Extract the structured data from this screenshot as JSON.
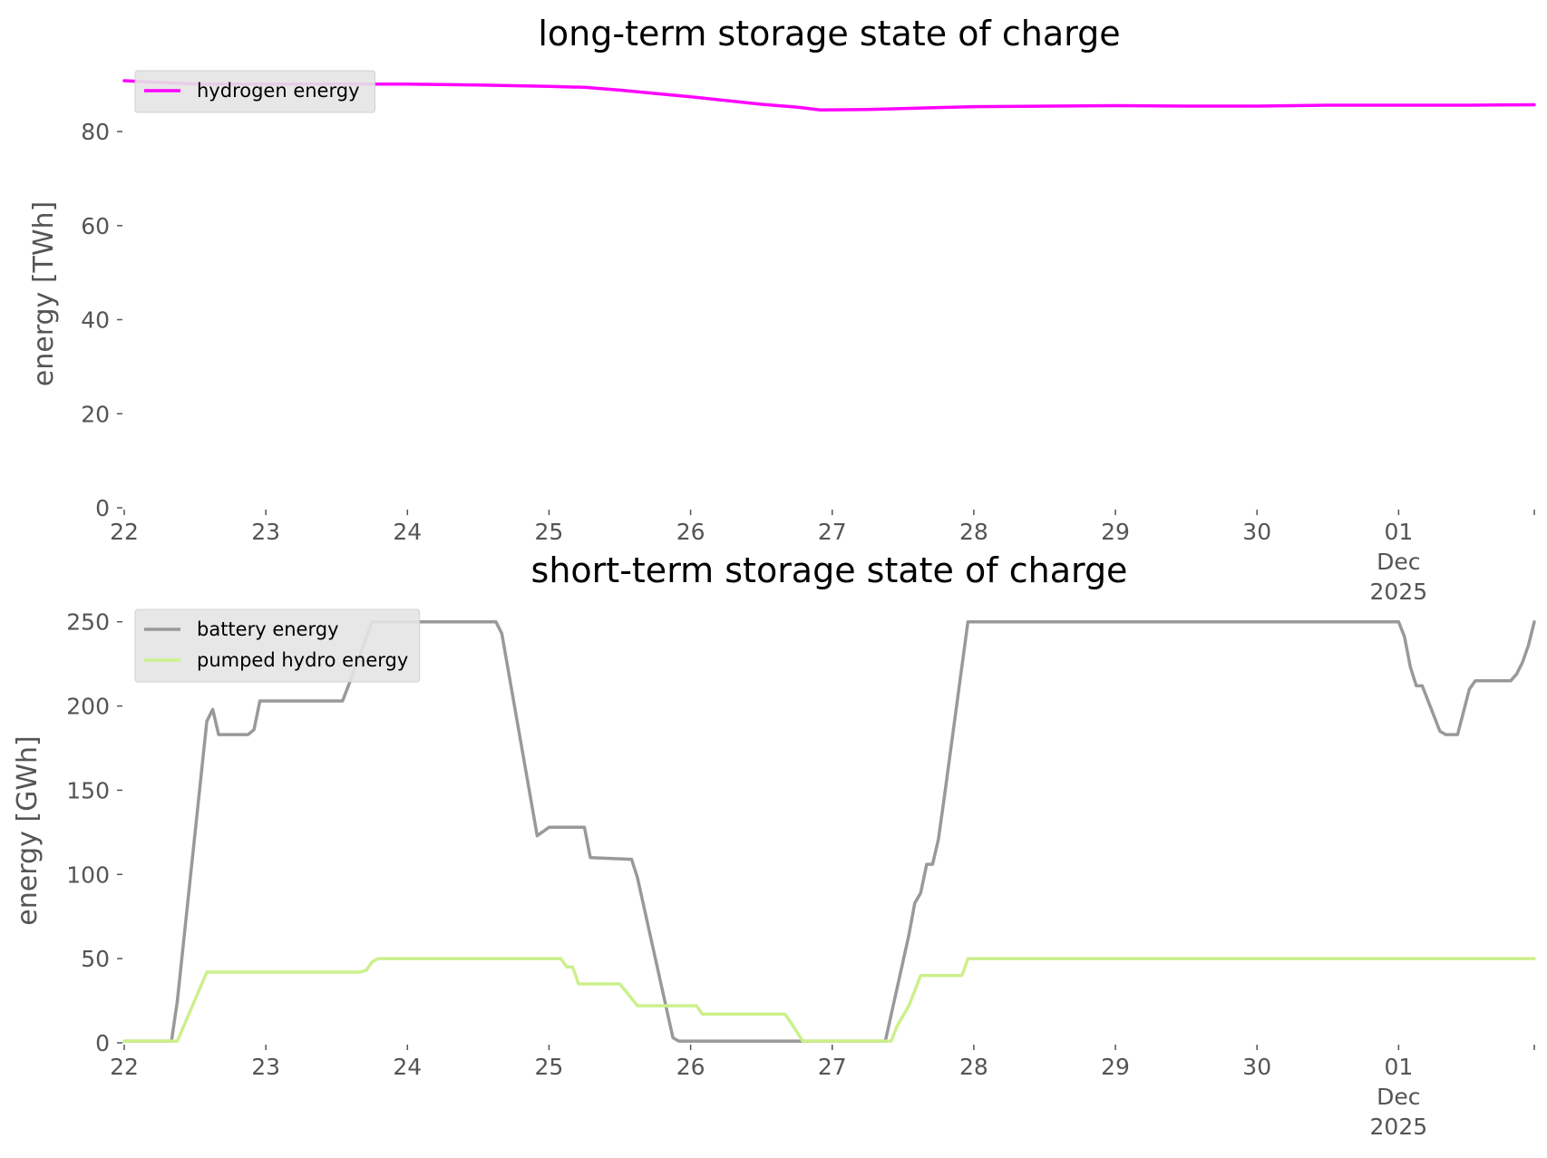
{
  "chart_data": [
    {
      "type": "line",
      "title": "long-term storage state of charge",
      "ylabel": "energy [TWh]",
      "xlabel": "",
      "ylim": [
        0,
        91
      ],
      "xlim": [
        "2025-11-22",
        "2025-12-01T23:00"
      ],
      "yticks": [
        "0",
        "20",
        "40",
        "60",
        "80"
      ],
      "xticks": [
        {
          "x": "2025-11-22",
          "label": [
            "22"
          ]
        },
        {
          "x": "2025-11-23",
          "label": [
            "23"
          ]
        },
        {
          "x": "2025-11-24",
          "label": [
            "24"
          ]
        },
        {
          "x": "2025-11-25",
          "label": [
            "25"
          ]
        },
        {
          "x": "2025-11-26",
          "label": [
            "26"
          ]
        },
        {
          "x": "2025-11-27",
          "label": [
            "27"
          ]
        },
        {
          "x": "2025-11-28",
          "label": [
            "28"
          ]
        },
        {
          "x": "2025-11-29",
          "label": [
            "29"
          ]
        },
        {
          "x": "2025-11-30",
          "label": [
            "30"
          ]
        },
        {
          "x": "2025-12-01",
          "label": [
            "01",
            "Dec",
            "2025"
          ]
        }
      ],
      "grid": false,
      "legend_position": "top-left",
      "series": [
        {
          "name": "hydrogen energy",
          "color": "#ff00ff",
          "points": [
            [
              "2025-11-22T00:00",
              90.8
            ],
            [
              "2025-11-22T12:00",
              90.1
            ],
            [
              "2025-11-23T00:00",
              90.1
            ],
            [
              "2025-11-24T00:00",
              90.1
            ],
            [
              "2025-11-24T12:00",
              89.9
            ],
            [
              "2025-11-25T00:00",
              89.6
            ],
            [
              "2025-11-25T06:00",
              89.4
            ],
            [
              "2025-11-25T12:00",
              88.8
            ],
            [
              "2025-11-26T00:00",
              87.4
            ],
            [
              "2025-11-26T12:00",
              85.8
            ],
            [
              "2025-11-26T18:00",
              85.2
            ],
            [
              "2025-11-26T22:00",
              84.6
            ],
            [
              "2025-11-27T06:00",
              84.7
            ],
            [
              "2025-11-27T18:00",
              85.1
            ],
            [
              "2025-11-28T00:00",
              85.3
            ],
            [
              "2025-11-29T00:00",
              85.5
            ],
            [
              "2025-11-29T12:00",
              85.4
            ],
            [
              "2025-11-30T00:00",
              85.4
            ],
            [
              "2025-11-30T12:00",
              85.6
            ],
            [
              "2025-12-01T00:00",
              85.6
            ],
            [
              "2025-12-01T12:00",
              85.6
            ],
            [
              "2025-12-01T23:00",
              85.7
            ]
          ]
        }
      ]
    },
    {
      "type": "line",
      "title": "short-term storage state of charge",
      "ylabel": "energy [GWh]",
      "xlabel": "",
      "ylim": [
        0,
        252
      ],
      "xlim": [
        "2025-11-22",
        "2025-12-01T23:00"
      ],
      "yticks": [
        "0",
        "50",
        "100",
        "150",
        "200",
        "250"
      ],
      "xticks": [
        {
          "x": "2025-11-22",
          "label": [
            "22"
          ]
        },
        {
          "x": "2025-11-23",
          "label": [
            "23"
          ]
        },
        {
          "x": "2025-11-24",
          "label": [
            "24"
          ]
        },
        {
          "x": "2025-11-25",
          "label": [
            "25"
          ]
        },
        {
          "x": "2025-11-26",
          "label": [
            "26"
          ]
        },
        {
          "x": "2025-11-27",
          "label": [
            "27"
          ]
        },
        {
          "x": "2025-11-28",
          "label": [
            "28"
          ]
        },
        {
          "x": "2025-11-29",
          "label": [
            "29"
          ]
        },
        {
          "x": "2025-11-30",
          "label": [
            "30"
          ]
        },
        {
          "x": "2025-12-01",
          "label": [
            "01",
            "Dec",
            "2025"
          ]
        }
      ],
      "grid": false,
      "legend_position": "top-left",
      "series": [
        {
          "name": "battery energy",
          "color": "#999999",
          "points": [
            [
              "2025-11-22T00:00",
              1
            ],
            [
              "2025-11-22T08:00",
              1
            ],
            [
              "2025-11-22T09:00",
              25
            ],
            [
              "2025-11-22T14:00",
              191
            ],
            [
              "2025-11-22T15:00",
              198
            ],
            [
              "2025-11-22T16:00",
              183
            ],
            [
              "2025-11-22T21:00",
              183
            ],
            [
              "2025-11-22T22:00",
              186
            ],
            [
              "2025-11-22T23:00",
              203
            ],
            [
              "2025-11-23T13:00",
              203
            ],
            [
              "2025-11-23T14:00",
              212
            ],
            [
              "2025-11-23T18:00",
              250
            ],
            [
              "2025-11-24T15:00",
              250
            ],
            [
              "2025-11-24T16:00",
              243
            ],
            [
              "2025-11-24T22:00",
              123
            ],
            [
              "2025-11-25T00:00",
              128
            ],
            [
              "2025-11-25T06:00",
              128
            ],
            [
              "2025-11-25T07:00",
              110
            ],
            [
              "2025-11-25T14:00",
              109
            ],
            [
              "2025-11-25T15:00",
              98
            ],
            [
              "2025-11-25T21:00",
              3
            ],
            [
              "2025-11-25T22:00",
              1
            ],
            [
              "2025-11-27T09:00",
              1
            ],
            [
              "2025-11-27T13:00",
              64
            ],
            [
              "2025-11-27T14:00",
              83
            ],
            [
              "2025-11-27T15:00",
              89
            ],
            [
              "2025-11-27T16:00",
              106
            ],
            [
              "2025-11-27T17:00",
              106
            ],
            [
              "2025-11-27T18:00",
              121
            ],
            [
              "2025-11-27T19:00",
              146
            ],
            [
              "2025-11-27T23:00",
              250
            ],
            [
              "2025-12-01T00:00",
              250
            ],
            [
              "2025-12-01T01:00",
              241
            ],
            [
              "2025-12-01T02:00",
              223
            ],
            [
              "2025-12-01T03:00",
              212
            ],
            [
              "2025-12-01T04:00",
              212
            ],
            [
              "2025-12-01T07:00",
              185
            ],
            [
              "2025-12-01T08:00",
              183
            ],
            [
              "2025-12-01T10:00",
              183
            ],
            [
              "2025-12-01T12:00",
              210
            ],
            [
              "2025-12-01T13:00",
              215
            ],
            [
              "2025-12-01T19:00",
              215
            ],
            [
              "2025-12-01T20:00",
              219
            ],
            [
              "2025-12-01T21:00",
              226
            ],
            [
              "2025-12-01T22:00",
              236
            ],
            [
              "2025-12-01T23:00",
              250
            ]
          ]
        },
        {
          "name": "pumped hydro energy",
          "color": "#ccf08c",
          "points": [
            [
              "2025-11-22T00:00",
              1
            ],
            [
              "2025-11-22T09:00",
              1
            ],
            [
              "2025-11-22T14:00",
              42
            ],
            [
              "2025-11-23T16:00",
              42
            ],
            [
              "2025-11-23T17:00",
              43
            ],
            [
              "2025-11-23T18:00",
              48
            ],
            [
              "2025-11-23T19:00",
              50
            ],
            [
              "2025-11-25T02:00",
              50
            ],
            [
              "2025-11-25T03:00",
              45
            ],
            [
              "2025-11-25T04:00",
              45
            ],
            [
              "2025-11-25T05:00",
              35
            ],
            [
              "2025-11-25T12:00",
              35
            ],
            [
              "2025-11-25T15:00",
              22
            ],
            [
              "2025-11-26T01:00",
              22
            ],
            [
              "2025-11-26T02:00",
              17
            ],
            [
              "2025-11-26T16:00",
              17
            ],
            [
              "2025-11-26T17:00",
              12
            ],
            [
              "2025-11-26T19:00",
              1
            ],
            [
              "2025-11-27T10:00",
              1
            ],
            [
              "2025-11-27T11:00",
              10
            ],
            [
              "2025-11-27T13:00",
              22
            ],
            [
              "2025-11-27T15:00",
              40
            ],
            [
              "2025-11-27T22:00",
              40
            ],
            [
              "2025-11-27T23:00",
              50
            ],
            [
              "2025-12-01T23:00",
              50
            ]
          ]
        }
      ]
    }
  ]
}
